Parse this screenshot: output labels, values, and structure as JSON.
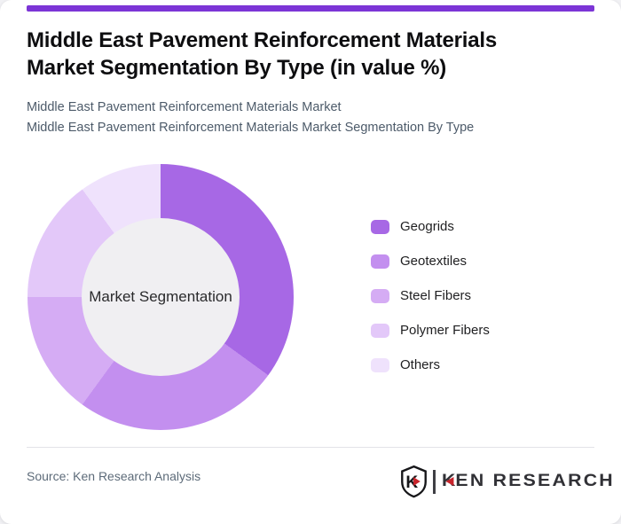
{
  "accent_color": "#7c35d6",
  "header": {
    "title_line1": "Middle East Pavement Reinforcement Materials",
    "title_line2": "Market Segmentation By Type (in value %)",
    "subtitle_line1": "Middle East Pavement Reinforcement Materials Market",
    "subtitle_line2": "Middle East Pavement Reinforcement Materials Market Segmentation By Type"
  },
  "chart_data": {
    "type": "pie",
    "subtype": "donut",
    "title": "Middle East Pavement Reinforcement Materials Market Segmentation By Type (in value %)",
    "center_label": "Market Segmentation",
    "categories": [
      "Geogrids",
      "Geotextiles",
      "Steel Fibers",
      "Polymer Fibers",
      "Others"
    ],
    "values": [
      35,
      25,
      15,
      15,
      10
    ],
    "values_note": "no numeric data labels shown; percentages estimated from arc angles",
    "colors": [
      "#a768e5",
      "#c38fef",
      "#d5acf4",
      "#e3c8f9",
      "#efe2fc"
    ],
    "start_angle_deg": 0,
    "direction": "clockwise",
    "legend_position": "right",
    "hole_color": "#f0eff2"
  },
  "footer": {
    "source_text": "Source: Ken Research Analysis",
    "logo": {
      "shield_letter": "K",
      "brand_first_letter": "K",
      "brand_rest": "EN RESEARCH",
      "brand_full": "KEN RESEARCH",
      "accent_red": "#c8242b"
    }
  }
}
